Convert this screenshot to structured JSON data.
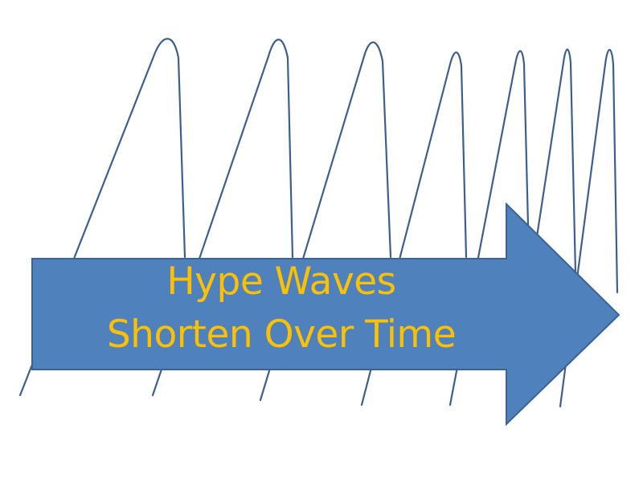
{
  "label": {
    "line1": "Hype Waves",
    "line2": "Shorten Over Time"
  },
  "colors": {
    "background": "#ffffff",
    "wave_stroke": "#3e5f8a",
    "arrow_fill": "#4f81bd",
    "arrow_stroke": "#3a6494",
    "label_text": "#ffc000"
  },
  "wave_count": 7
}
